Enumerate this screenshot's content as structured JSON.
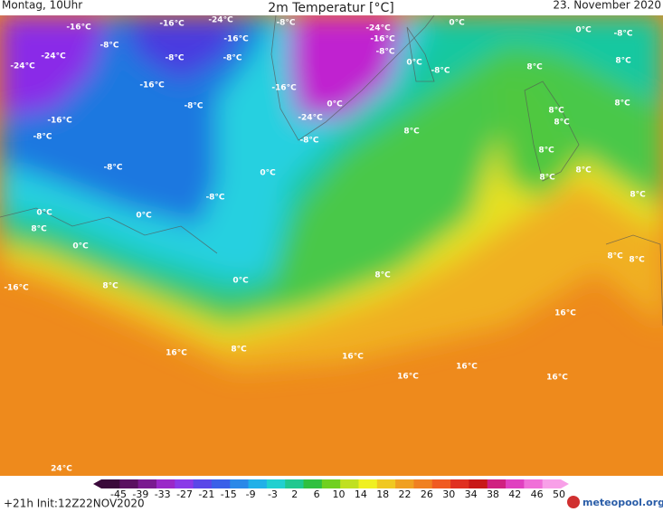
{
  "header": {
    "left": "Montag, 10Uhr",
    "title": "2m Temperatur [°C]",
    "right": "23. November 2020"
  },
  "map": {
    "labels": [
      "-16°C",
      "-16°C",
      "-24°C",
      "-8°C",
      "-24°C",
      "0°C",
      "0°C",
      "-8°C",
      "-8°C",
      "-16°C",
      "-16°C",
      "-8°C",
      "-24°C",
      "-24°C",
      "-8°C",
      "-8°C",
      "0°C",
      "-8°C",
      "8°C",
      "8°C",
      "-16°C",
      "-16°C",
      "-8°C",
      "0°C",
      "8°C",
      "8°C",
      "-16°C",
      "-24°C",
      "8°C",
      "-8°C",
      "8°C",
      "-8°C",
      "8°C",
      "-8°C",
      "0°C",
      "8°C",
      "8°C",
      "-8°C",
      "8°C",
      "0°C",
      "0°C",
      "8°C",
      "0°C",
      "8°C",
      "8°C",
      "8°C",
      "0°C",
      "-16°C",
      "8°C",
      "16°C",
      "16°C",
      "8°C",
      "16°C",
      "16°C",
      "16°C",
      "16°C",
      "24°C"
    ]
  },
  "legend": {
    "ticks": [
      -45,
      -39,
      -33,
      -27,
      -21,
      -15,
      -9,
      -3,
      2,
      6,
      10,
      14,
      18,
      22,
      26,
      30,
      34,
      38,
      42,
      46,
      50
    ]
  },
  "footer": {
    "run": "+21h Init:12Z22NOV2020",
    "logo": "meteopool.org"
  }
}
